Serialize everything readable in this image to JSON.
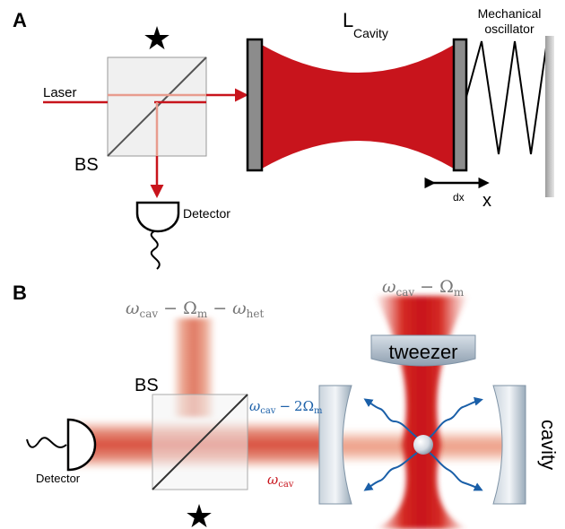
{
  "panel_a": {
    "label": "A",
    "laser": "Laser",
    "beam_splitter": "BS",
    "detector": "Detector",
    "cavity_length_symbol": "L",
    "cavity_length_subscript": "Cavity",
    "mechanical_oscillator_line1": "Mechanical",
    "mechanical_oscillator_line2": "oscillator",
    "displacement": "dx",
    "position": "x",
    "star": "★"
  },
  "panel_b": {
    "label": "B",
    "beam_splitter": "BS",
    "detector": "Detector",
    "tweezer": "tweezer",
    "cavity": "cavity",
    "star": "★",
    "freq_top": {
      "w": "ω",
      "w_sub": "cav",
      "minus1": "−",
      "Om": "Ω",
      "Om_sub": "m",
      "minus2": "−",
      "w2": "ω",
      "w2_sub": "het"
    },
    "freq_tweezer": {
      "w": "ω",
      "w_sub": "cav",
      "minus": "−",
      "Om": "Ω",
      "Om_sub": "m"
    },
    "freq_mid": {
      "w": "ω",
      "w_sub": "cav",
      "minus": "−",
      "coef": "2Ω",
      "Om_sub": "m"
    },
    "freq_cav": {
      "w": "ω",
      "w_sub": "cav"
    }
  },
  "colors": {
    "beam_red": "#c8141c",
    "mirror_gray": "#8c8c8c",
    "wave_blue": "#1a5fa8",
    "label_gray": "#777777"
  }
}
